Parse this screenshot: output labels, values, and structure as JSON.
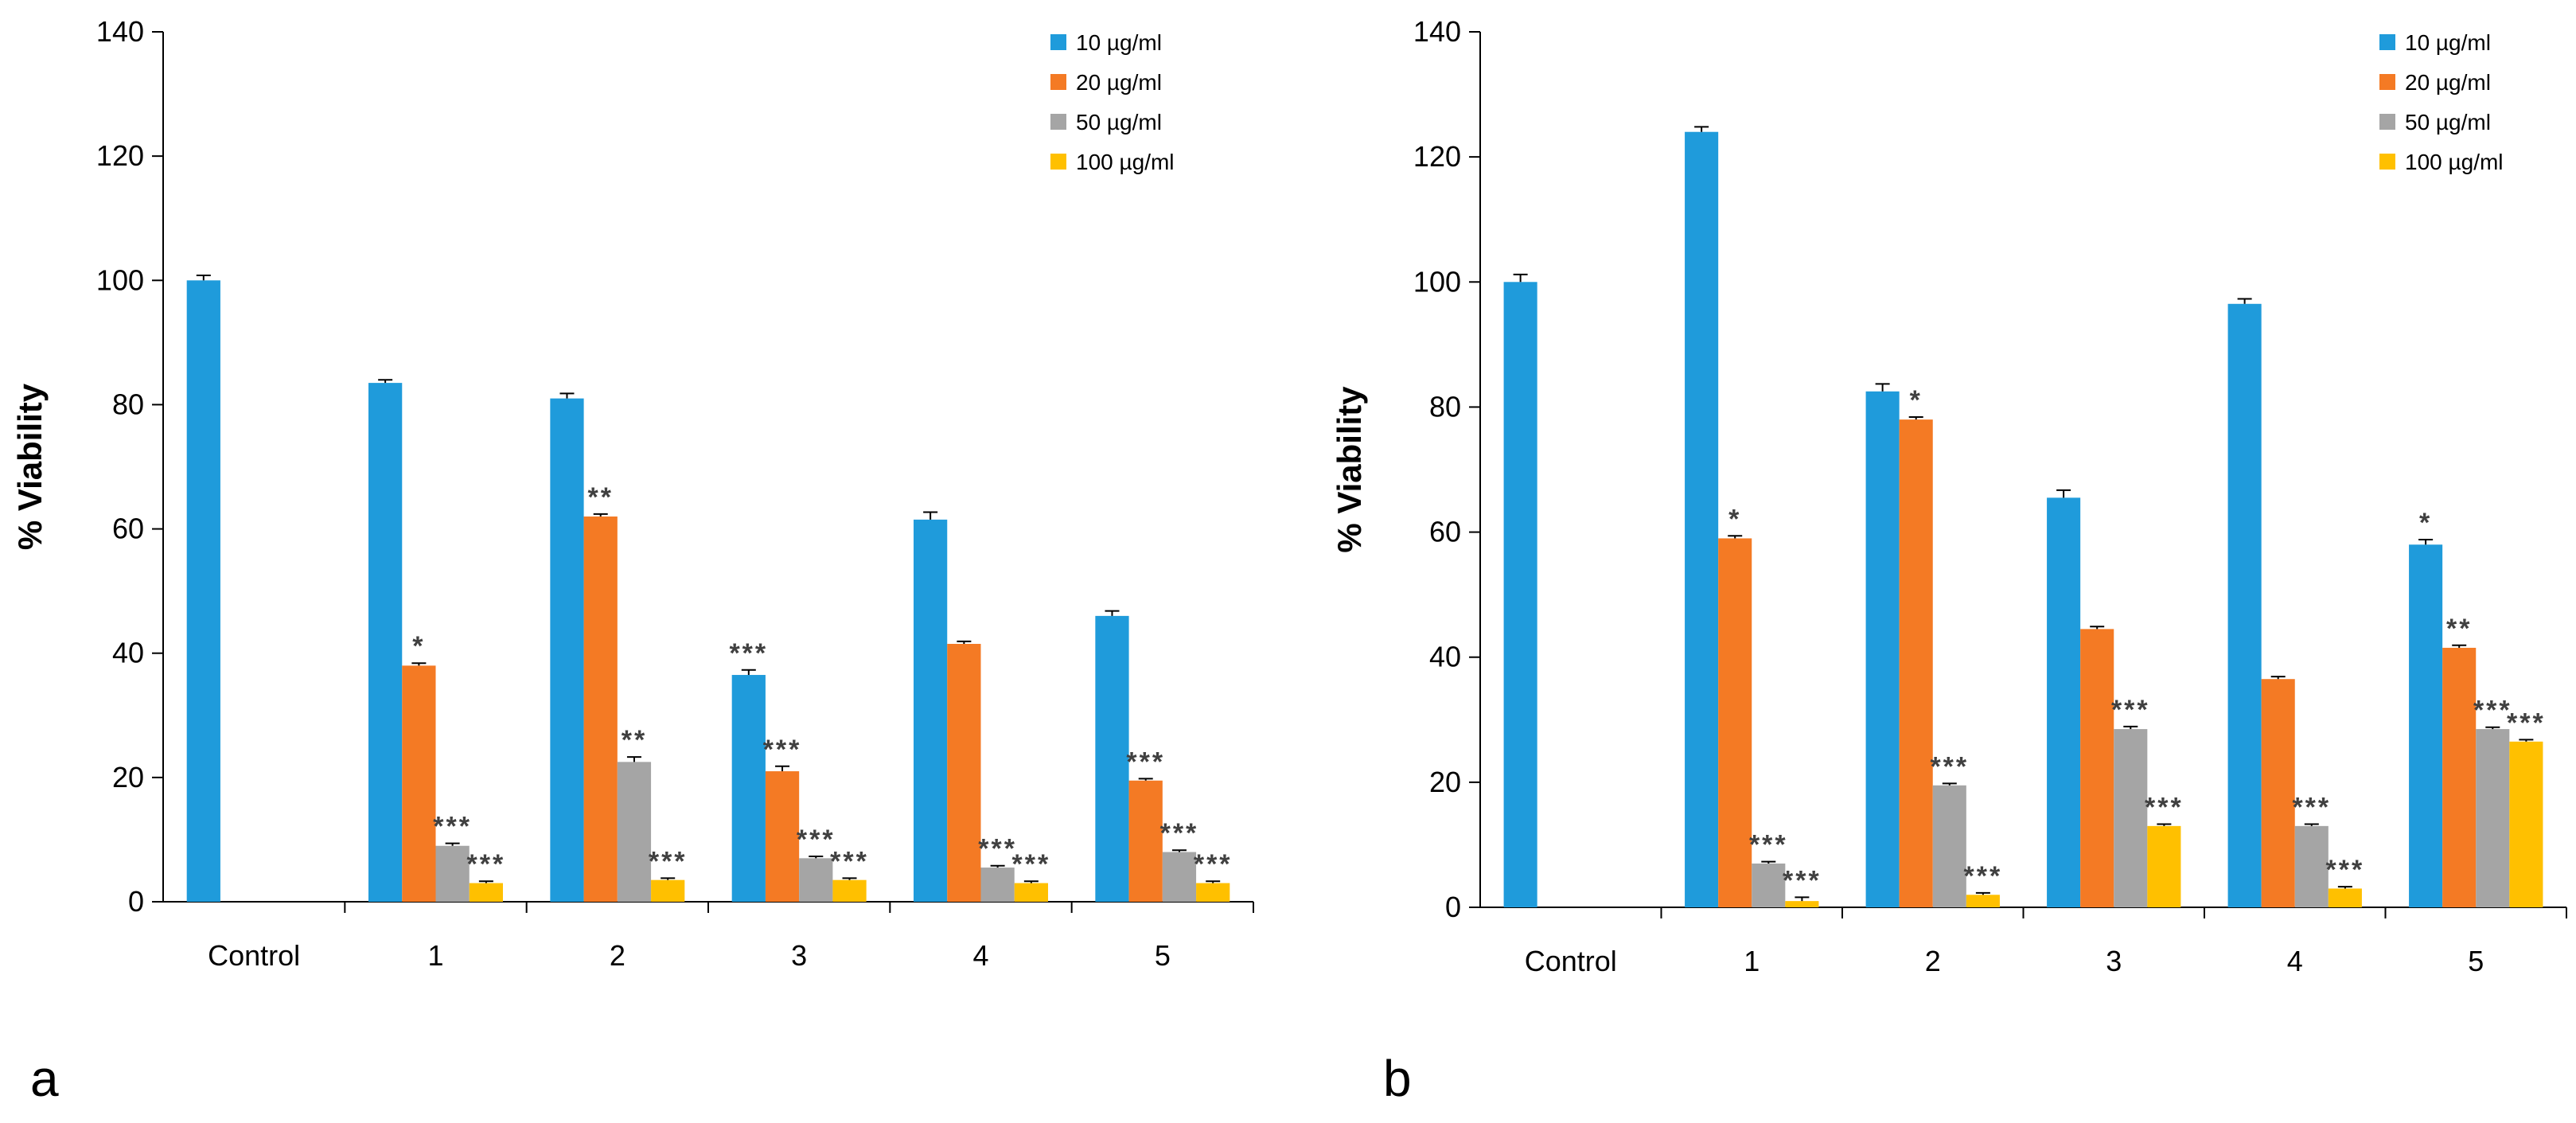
{
  "chart_data": [
    {
      "panel_label": "a",
      "type": "bar",
      "ylabel": "% Viability",
      "xlabel": "",
      "ylim": [
        0,
        140
      ],
      "yticks": [
        0,
        20,
        40,
        60,
        80,
        100,
        120,
        140
      ],
      "categories": [
        "Control",
        "1",
        "2",
        "3",
        "4",
        "5"
      ],
      "series": [
        {
          "name": "10 µg/ml",
          "color": "#1F9BDB",
          "values": [
            100,
            83.5,
            81,
            36.5,
            61.5,
            46
          ],
          "errors": [
            0.8,
            0.5,
            0.8,
            0.8,
            1.2,
            0.8
          ],
          "sig": [
            "",
            "",
            "",
            "***",
            "",
            ""
          ]
        },
        {
          "name": "20 µg/ml",
          "color": "#F47A24",
          "values": [
            null,
            38,
            62,
            21,
            41.5,
            19.5
          ],
          "errors": [
            null,
            0.4,
            0.4,
            0.8,
            0.4,
            0.3
          ],
          "sig": [
            "",
            "*",
            "**",
            "***",
            "",
            "***"
          ]
        },
        {
          "name": "50 µg/ml",
          "color": "#A5A5A5",
          "values": [
            null,
            9,
            22.5,
            7,
            5.5,
            8
          ],
          "errors": [
            null,
            0.4,
            0.8,
            0.3,
            0.3,
            0.3
          ],
          "sig": [
            "",
            "***",
            "**",
            "***",
            "***",
            "***"
          ]
        },
        {
          "name": "100 µg/ml",
          "color": "#FFC000",
          "values": [
            null,
            3,
            3.5,
            3.5,
            3,
            3
          ],
          "errors": [
            null,
            0.3,
            0.3,
            0.3,
            0.3,
            0.3
          ],
          "sig": [
            "",
            "***",
            "***",
            "***",
            "***",
            "***"
          ]
        }
      ],
      "legend_position": "top-right"
    },
    {
      "panel_label": "b",
      "type": "bar",
      "ylabel": "% Viability",
      "xlabel": "",
      "ylim": [
        0,
        140
      ],
      "yticks": [
        0,
        20,
        40,
        60,
        80,
        100,
        120,
        140
      ],
      "categories": [
        "Control",
        "1",
        "2",
        "3",
        "4",
        "5"
      ],
      "series": [
        {
          "name": "10 µg/ml",
          "color": "#1F9BDB",
          "values": [
            100,
            124,
            82.5,
            65.5,
            96.5,
            58
          ],
          "errors": [
            1.2,
            0.8,
            1.2,
            1.2,
            0.8,
            0.8
          ],
          "sig": [
            "",
            "",
            "",
            "",
            "",
            "*"
          ]
        },
        {
          "name": "20 µg/ml",
          "color": "#F47A24",
          "values": [
            null,
            59,
            78,
            44.5,
            36.5,
            41.5
          ],
          "errors": [
            null,
            0.4,
            0.4,
            0.4,
            0.4,
            0.4
          ],
          "sig": [
            "",
            "*",
            "*",
            "",
            "",
            "**"
          ]
        },
        {
          "name": "50 µg/ml",
          "color": "#A5A5A5",
          "values": [
            null,
            7,
            19.5,
            28.5,
            13,
            28.5
          ],
          "errors": [
            null,
            0.3,
            0.3,
            0.4,
            0.3,
            0.3
          ],
          "sig": [
            "",
            "***",
            "***",
            "***",
            "***",
            "***"
          ]
        },
        {
          "name": "100 µg/ml",
          "color": "#FFC000",
          "values": [
            null,
            1,
            2,
            13,
            3,
            26.5
          ],
          "errors": [
            null,
            0.6,
            0.3,
            0.3,
            0.3,
            0.3
          ],
          "sig": [
            "",
            "***",
            "***",
            "***",
            "***",
            "***"
          ]
        }
      ],
      "legend_position": "top-right"
    }
  ]
}
